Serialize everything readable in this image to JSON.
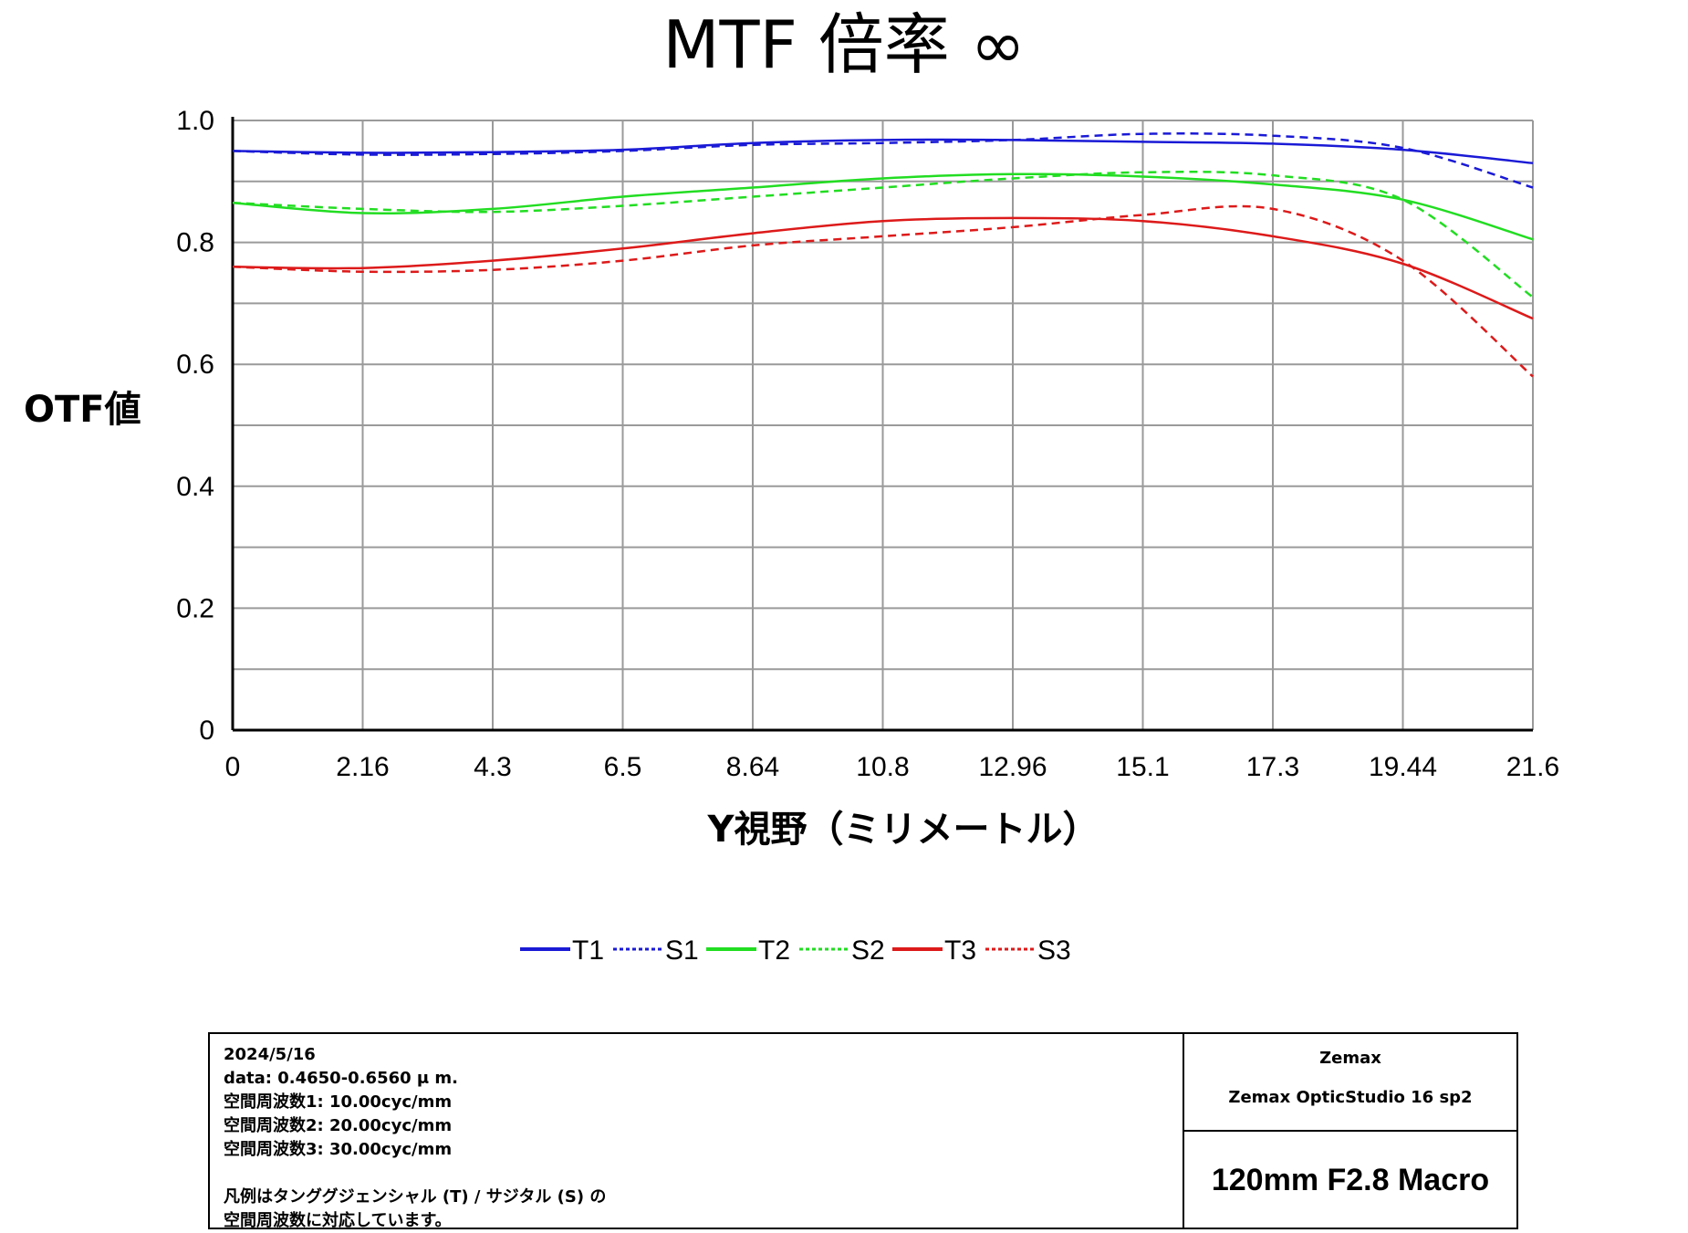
{
  "chart_data": {
    "type": "line",
    "title": "MTF 倍率 ∞",
    "xlabel": "Y視野（ミリメートル）",
    "ylabel": "OTF値",
    "xlim": [
      0,
      21.6
    ],
    "ylim": [
      0,
      1.0
    ],
    "x_ticks": [
      "0",
      "2.16",
      "4.3",
      "6.5",
      "8.64",
      "10.8",
      "12.96",
      "15.1",
      "17.3",
      "19.44",
      "21.6"
    ],
    "y_ticks": [
      "0",
      "0.2",
      "0.4",
      "0.6",
      "0.8",
      "1.0"
    ],
    "grid": true,
    "legend": "bottom",
    "x": [
      0,
      2.16,
      4.32,
      6.48,
      8.64,
      10.8,
      12.96,
      15.12,
      17.28,
      19.44,
      21.6
    ],
    "series": [
      {
        "name": "T1",
        "color": "#1a1ad6",
        "dash": false,
        "values": [
          0.95,
          0.947,
          0.948,
          0.952,
          0.963,
          0.968,
          0.968,
          0.965,
          0.962,
          0.952,
          0.93
        ]
      },
      {
        "name": "S1",
        "color": "#1a1ad6",
        "dash": true,
        "values": [
          0.95,
          0.944,
          0.945,
          0.95,
          0.96,
          0.963,
          0.968,
          0.978,
          0.975,
          0.955,
          0.89
        ]
      },
      {
        "name": "T2",
        "color": "#22dd22",
        "dash": false,
        "values": [
          0.865,
          0.848,
          0.855,
          0.875,
          0.89,
          0.905,
          0.912,
          0.908,
          0.895,
          0.87,
          0.805
        ]
      },
      {
        "name": "S2",
        "color": "#22dd22",
        "dash": true,
        "values": [
          0.865,
          0.855,
          0.85,
          0.86,
          0.875,
          0.89,
          0.905,
          0.915,
          0.91,
          0.87,
          0.71
        ]
      },
      {
        "name": "T3",
        "color": "#dd1a1a",
        "dash": false,
        "values": [
          0.76,
          0.758,
          0.77,
          0.79,
          0.815,
          0.835,
          0.84,
          0.835,
          0.81,
          0.765,
          0.675
        ]
      },
      {
        "name": "S3",
        "color": "#dd1a1a",
        "dash": true,
        "values": [
          0.76,
          0.752,
          0.755,
          0.77,
          0.795,
          0.81,
          0.825,
          0.845,
          0.855,
          0.77,
          0.58
        ]
      }
    ]
  },
  "info": {
    "date": "2024/5/16",
    "data": "data: 0.4650-0.6560 μ m.",
    "freq1": "空間周波数1: 10.00cyc/mm",
    "freq2": "空間周波数2: 20.00cyc/mm",
    "freq3": "空間周波数3: 30.00cyc/mm",
    "note1": "凡例はタンググジェンシャル (T) / サジタル (S) の",
    "note2": "空間周波数に対応しています。",
    "vendor": "Zemax",
    "software": "Zemax OpticStudio 16 sp2",
    "lens": "120mm F2.8 Macro"
  }
}
